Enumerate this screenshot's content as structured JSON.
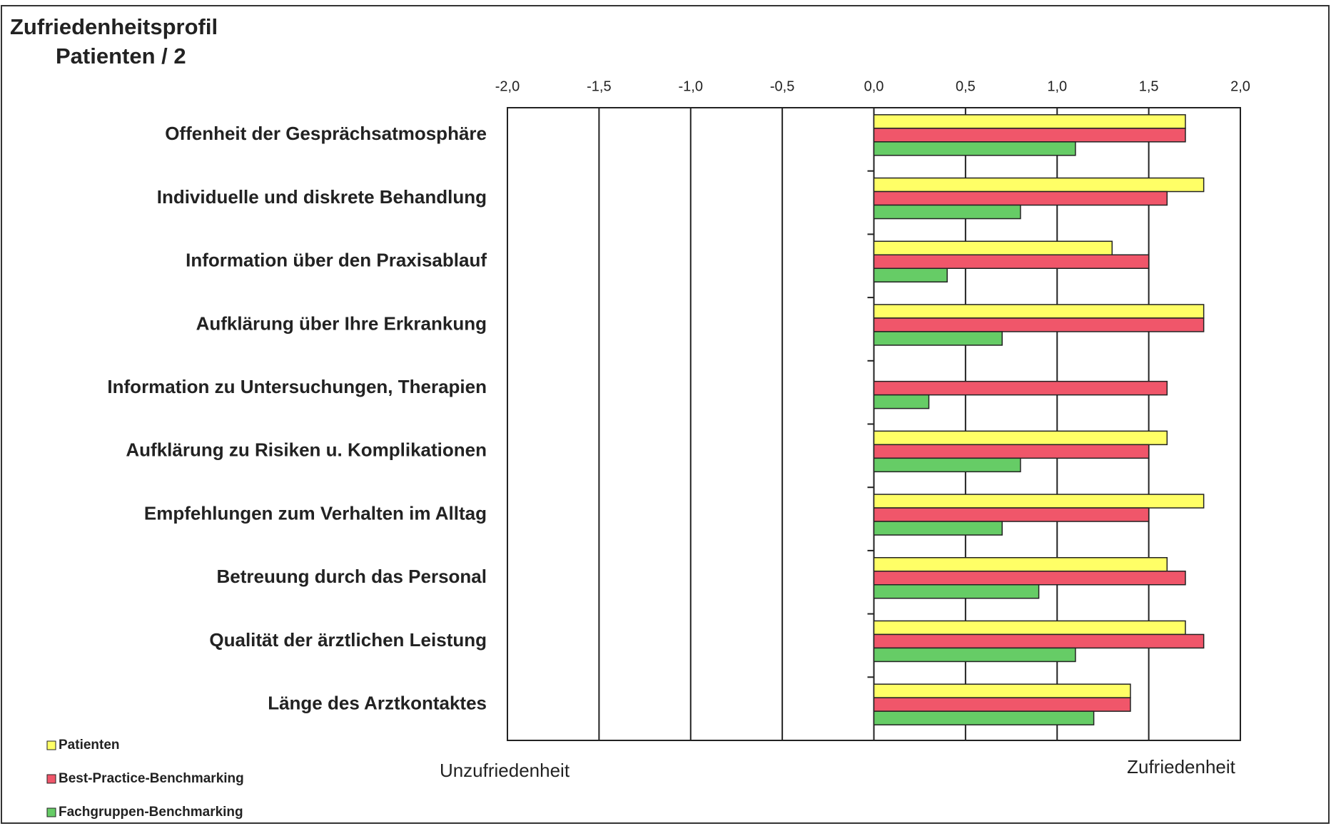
{
  "chart_data": {
    "type": "bar",
    "orientation": "horizontal",
    "title": "Zufriedenheitsprofil",
    "subtitle": "Patienten / 2",
    "annotations": [
      "Unzufriedenheit",
      "Zufriedenheit"
    ],
    "categories": [
      "Offenheit der Gesprächsatmosphäre",
      "Individuelle und diskrete Behandlung",
      "Information über den Praxisablauf",
      "Aufklärung über Ihre Erkrankung",
      "Information zu Untersuchungen, Therapien",
      "Aufklärung zu Risiken u. Komplikationen",
      "Empfehlungen zum Verhalten im Alltag",
      "Betreuung durch das Personal",
      "Qualität der ärztlichen Leistung",
      "Länge des Arztkontaktes"
    ],
    "series": [
      {
        "name": "Patienten",
        "color": "#ffff66",
        "values": [
          1.7,
          1.8,
          1.3,
          1.8,
          null,
          1.6,
          1.8,
          1.6,
          1.7,
          1.4
        ]
      },
      {
        "name": "Best-Practice-Benchmarking",
        "color": "#f0566a",
        "values": [
          1.7,
          1.6,
          1.5,
          1.8,
          1.6,
          1.5,
          1.5,
          1.7,
          1.8,
          1.4
        ]
      },
      {
        "name": "Fachgruppen-Benchmarking",
        "color": "#66cc66",
        "values": [
          1.1,
          0.8,
          0.4,
          0.7,
          0.3,
          0.8,
          0.7,
          0.9,
          1.1,
          1.2
        ]
      }
    ],
    "xlim": [
      -2,
      2
    ],
    "xticks": [
      {
        "value": -2,
        "label": "-2,0"
      },
      {
        "value": -1.5,
        "label": "-1,5"
      },
      {
        "value": -1,
        "label": "-1,0"
      },
      {
        "value": -0.5,
        "label": "-0,5"
      },
      {
        "value": 0,
        "label": "0,0"
      },
      {
        "value": 0.5,
        "label": "0,5"
      },
      {
        "value": 1,
        "label": "1,0"
      },
      {
        "value": 1.5,
        "label": "1,5"
      },
      {
        "value": 2,
        "label": "2,0"
      }
    ],
    "grid": true,
    "legend": "bottom-left"
  }
}
